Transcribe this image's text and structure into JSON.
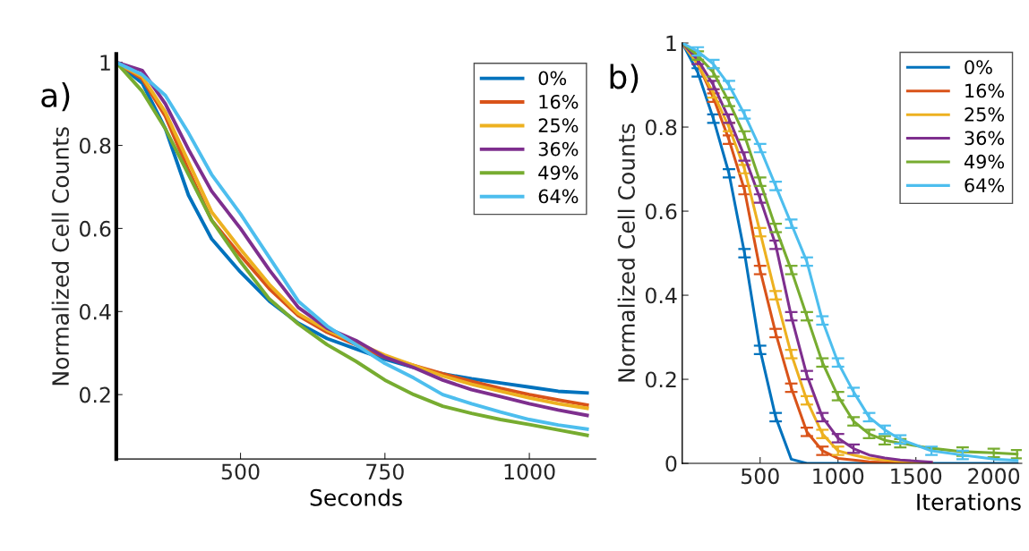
{
  "chart_data": [
    {
      "type": "line",
      "xlabel": "Seconds",
      "ylabel": "Normalized Cell Counts",
      "annotations": [
        "a)"
      ],
      "x": [
        285,
        330,
        370,
        410,
        450,
        500,
        550,
        600,
        650,
        700,
        750,
        800,
        850,
        900,
        950,
        1000,
        1050,
        1100
      ],
      "series": [
        {
          "name": "0%",
          "color": "#0072bd",
          "values": [
            1.0,
            0.95,
            0.84,
            0.68,
            0.575,
            0.495,
            0.425,
            0.372,
            0.335,
            0.31,
            0.285,
            0.265,
            0.25,
            0.238,
            0.228,
            0.218,
            0.208,
            0.204
          ]
        },
        {
          "name": "16%",
          "color": "#d95319",
          "values": [
            1.0,
            0.96,
            0.87,
            0.74,
            0.62,
            0.535,
            0.455,
            0.39,
            0.35,
            0.32,
            0.29,
            0.27,
            0.25,
            0.232,
            0.215,
            0.2,
            0.187,
            0.175
          ]
        },
        {
          "name": "25%",
          "color": "#edb120",
          "values": [
            1.0,
            0.965,
            0.88,
            0.76,
            0.64,
            0.55,
            0.465,
            0.395,
            0.355,
            0.325,
            0.295,
            0.27,
            0.245,
            0.225,
            0.208,
            0.192,
            0.178,
            0.167
          ]
        },
        {
          "name": "36%",
          "color": "#7e2f8e",
          "values": [
            1.0,
            0.98,
            0.9,
            0.79,
            0.69,
            0.6,
            0.5,
            0.41,
            0.36,
            0.33,
            0.29,
            0.265,
            0.235,
            0.212,
            0.195,
            0.178,
            0.163,
            0.15
          ]
        },
        {
          "name": "49%",
          "color": "#77ac30",
          "values": [
            1.0,
            0.93,
            0.84,
            0.73,
            0.62,
            0.52,
            0.43,
            0.37,
            0.32,
            0.28,
            0.235,
            0.2,
            0.172,
            0.155,
            0.14,
            0.128,
            0.115,
            0.102
          ]
        },
        {
          "name": "64%",
          "color": "#4dbeee",
          "values": [
            1.0,
            0.97,
            0.92,
            0.83,
            0.73,
            0.635,
            0.53,
            0.425,
            0.365,
            0.32,
            0.275,
            0.24,
            0.2,
            0.178,
            0.158,
            0.14,
            0.127,
            0.117
          ]
        }
      ],
      "xlim": [
        285,
        1115
      ],
      "ylim": [
        0.045,
        1.02
      ],
      "xticks": [
        500,
        750,
        1000
      ],
      "yticks": [
        0.2,
        0.4,
        0.6,
        0.8,
        1
      ],
      "legend": "top right",
      "grid": false
    },
    {
      "type": "line",
      "xlabel": "Iterations",
      "ylabel": "Normalized Cell Counts",
      "annotations": [
        "b)"
      ],
      "x": [
        0,
        100,
        200,
        300,
        400,
        500,
        600,
        700,
        800,
        900,
        1000,
        1100,
        1200,
        1300,
        1400,
        1600,
        1800,
        2000,
        2150
      ],
      "series": [
        {
          "name": "0%",
          "color": "#0072bd",
          "values": [
            1,
            0.93,
            0.82,
            0.69,
            0.5,
            0.27,
            0.11,
            0.01,
            0,
            0,
            0,
            0,
            0,
            0,
            0,
            0,
            0,
            0,
            0
          ],
          "errors": [
            null,
            0.01,
            0.01,
            0.01,
            0.01,
            0.01,
            0.01,
            null,
            null,
            null,
            null,
            null,
            null,
            null,
            null,
            null,
            null,
            null,
            null
          ]
        },
        {
          "name": "16%",
          "color": "#d95319",
          "values": [
            1,
            0.95,
            0.87,
            0.77,
            0.65,
            0.46,
            0.31,
            0.18,
            0.075,
            0.03,
            0.012,
            0.008,
            0.004,
            0.002,
            0,
            0,
            null,
            null,
            null
          ],
          "errors": [
            null,
            null,
            0.01,
            0.01,
            0.01,
            0.01,
            0.01,
            0.01,
            0.01,
            0.01,
            null,
            null,
            null,
            null,
            null,
            null,
            null,
            null,
            null
          ]
        },
        {
          "name": "25%",
          "color": "#edb120",
          "values": [
            1,
            0.95,
            0.88,
            0.8,
            0.7,
            0.55,
            0.4,
            0.26,
            0.15,
            0.07,
            0.03,
            0.02,
            0.012,
            0.008,
            0.005,
            0.002,
            null,
            null,
            null
          ],
          "errors": [
            null,
            null,
            0.01,
            0.01,
            0.01,
            0.01,
            0.01,
            0.01,
            0.01,
            0.01,
            0.01,
            null,
            null,
            null,
            null,
            null,
            null,
            null,
            null
          ]
        },
        {
          "name": "36%",
          "color": "#7e2f8e",
          "values": [
            1,
            0.96,
            0.9,
            0.82,
            0.73,
            0.63,
            0.52,
            0.35,
            0.21,
            0.11,
            0.06,
            0.035,
            0.02,
            0.013,
            0.008,
            0.003,
            null,
            null,
            null
          ],
          "errors": [
            null,
            0.01,
            0.01,
            0.01,
            0.01,
            0.01,
            0.01,
            0.01,
            0.01,
            0.01,
            0.01,
            0.01,
            null,
            null,
            null,
            null,
            null,
            null,
            null
          ]
        },
        {
          "name": "49%",
          "color": "#77ac30",
          "values": [
            1,
            0.97,
            0.93,
            0.86,
            0.78,
            0.67,
            0.56,
            0.46,
            0.35,
            0.24,
            0.16,
            0.1,
            0.07,
            0.055,
            0.048,
            0.036,
            0.028,
            0.025,
            0.022
          ],
          "errors": [
            null,
            0.01,
            0.01,
            0.01,
            0.01,
            0.01,
            0.01,
            0.01,
            0.01,
            0.01,
            0.01,
            0.01,
            0.01,
            0.01,
            0.01,
            null,
            0.01,
            0.01,
            0.01
          ]
        },
        {
          "name": "64%",
          "color": "#4dbeee",
          "values": [
            1,
            0.98,
            0.95,
            0.9,
            0.83,
            0.75,
            0.66,
            0.57,
            0.48,
            0.34,
            0.24,
            0.17,
            0.11,
            0.08,
            0.057,
            0.03,
            0.02,
            0.01,
            0.007
          ],
          "errors": [
            null,
            0.01,
            0.01,
            0.01,
            0.01,
            0.01,
            0.01,
            0.01,
            0.01,
            0.01,
            0.01,
            0.01,
            0.01,
            0.01,
            0.01,
            0.01,
            0.01,
            null,
            null
          ]
        }
      ],
      "xlim": [
        0,
        2180
      ],
      "ylim": [
        0,
        1
      ],
      "xticks": [
        500,
        1000,
        1500,
        2000
      ],
      "yticks": [
        0,
        0.2,
        0.4,
        0.6,
        0.8,
        1
      ],
      "legend": "top right",
      "grid": false
    }
  ]
}
